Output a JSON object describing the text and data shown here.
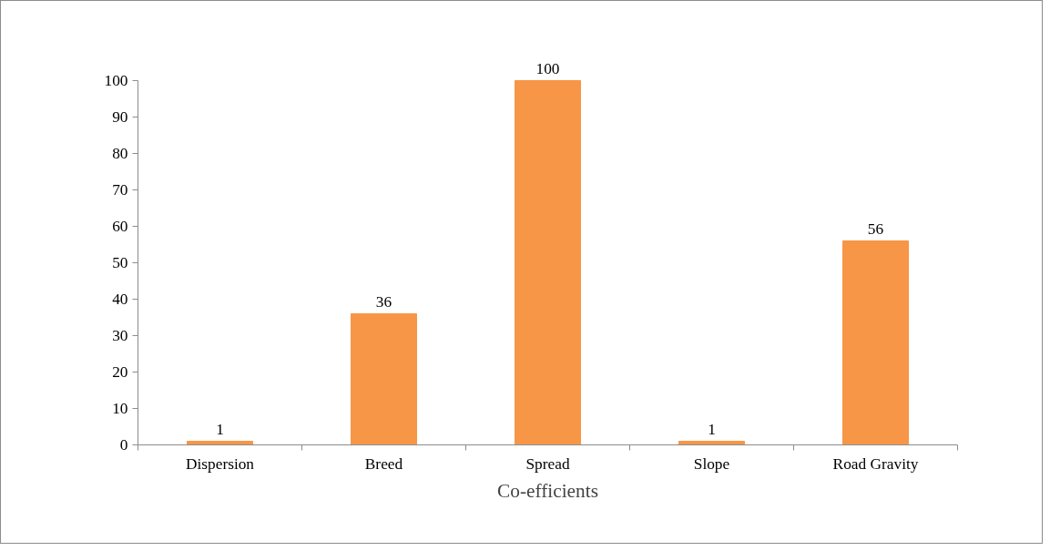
{
  "chart_data": {
    "type": "bar",
    "xlabel": "Co-efficients",
    "categories": [
      "Dispersion",
      "Breed",
      "Spread",
      "Slope",
      "Road Gravity"
    ],
    "values": [
      1,
      36,
      100,
      1,
      56
    ],
    "color": "#f79646",
    "data_labels": true,
    "ylim": [
      0,
      100
    ],
    "yticks": [
      0,
      10,
      20,
      30,
      40,
      50,
      60,
      70,
      80,
      90,
      100
    ],
    "grid": false,
    "legend": false
  }
}
